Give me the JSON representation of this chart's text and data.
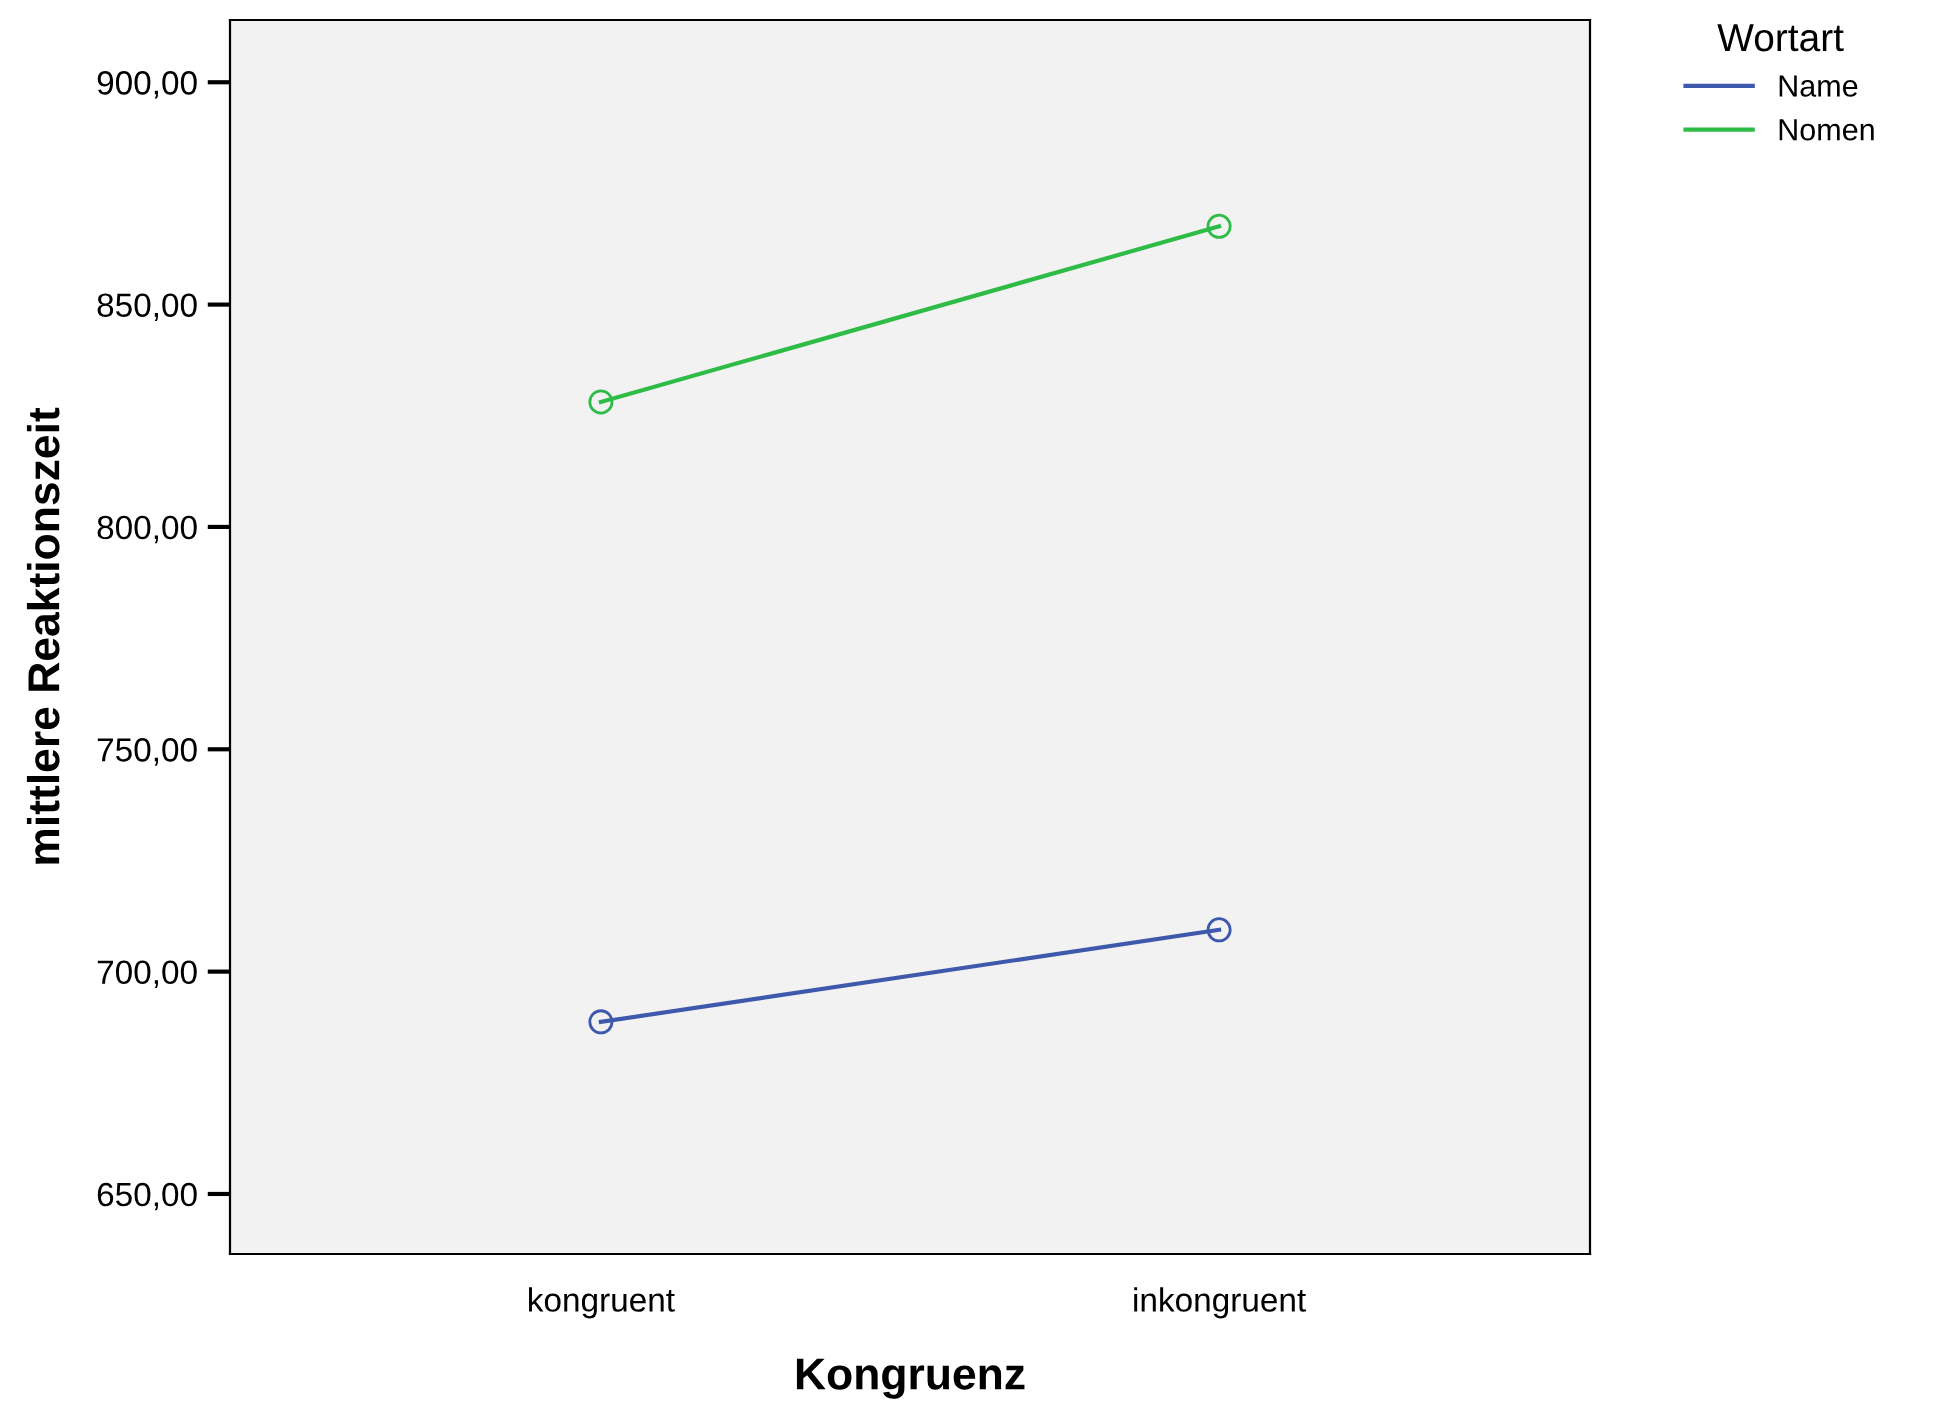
{
  "chart_data": {
    "type": "line",
    "xlabel": "Kongruenz",
    "ylabel": "mittlere Reaktionszeit",
    "legend_title": "Wortart",
    "categories": [
      "kongruent",
      "inkongruent"
    ],
    "series": [
      {
        "name": "Name",
        "color": "#3e58ac",
        "values": [
          688.7,
          709.4
        ]
      },
      {
        "name": "Nomen",
        "color": "#2ebc47",
        "values": [
          828.1,
          867.6
        ]
      }
    ],
    "ylim": [
      636.5,
      914
    ],
    "yticks": [
      {
        "value": 650,
        "label": "650,00"
      },
      {
        "value": 700,
        "label": "700,00"
      },
      {
        "value": 750,
        "label": "750,00"
      },
      {
        "value": 800,
        "label": "800,00"
      },
      {
        "value": 850,
        "label": "850,00"
      },
      {
        "value": 900,
        "label": "900,00"
      }
    ],
    "marker": "circle",
    "line_style": "solid",
    "grid": false,
    "legend": "top right"
  }
}
